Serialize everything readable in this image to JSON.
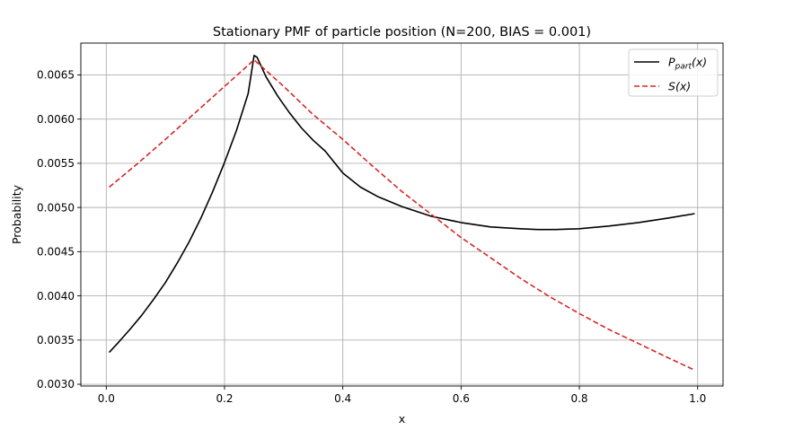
{
  "chart_data": {
    "type": "line",
    "title": "Stationary PMF of particle position (N=200, BIAS = 0.001)",
    "xlabel": "x",
    "ylabel": "Probability",
    "xlim": [
      -0.043,
      1.043
    ],
    "ylim": [
      0.00298,
      0.00686
    ],
    "xticks": [
      0.0,
      0.2,
      0.4,
      0.6,
      0.8,
      1.0
    ],
    "xtick_labels": [
      "0.0",
      "0.2",
      "0.4",
      "0.6",
      "0.8",
      "1.0"
    ],
    "yticks": [
      0.003,
      0.0035,
      0.004,
      0.0045,
      0.005,
      0.0055,
      0.006,
      0.0065
    ],
    "ytick_labels": [
      "0.0030",
      "0.0035",
      "0.0040",
      "0.0045",
      "0.0050",
      "0.0055",
      "0.0060",
      "0.0065"
    ],
    "grid": true,
    "legend_position": "top-right",
    "series": [
      {
        "name": "P_part(x)",
        "legend_main": "P",
        "legend_sub": "part",
        "legend_tail": "(x)",
        "color": "#000000",
        "style": "solid",
        "x": [
          0.005,
          0.02,
          0.04,
          0.06,
          0.08,
          0.1,
          0.12,
          0.14,
          0.16,
          0.18,
          0.2,
          0.22,
          0.24,
          0.25,
          0.255,
          0.27,
          0.29,
          0.31,
          0.33,
          0.35,
          0.37,
          0.4,
          0.43,
          0.46,
          0.5,
          0.55,
          0.6,
          0.65,
          0.7,
          0.73,
          0.76,
          0.8,
          0.85,
          0.9,
          0.95,
          0.995
        ],
        "y": [
          0.00336,
          0.00347,
          0.00362,
          0.00378,
          0.00396,
          0.00415,
          0.00437,
          0.00461,
          0.00488,
          0.00518,
          0.00551,
          0.00587,
          0.00629,
          0.00672,
          0.0067,
          0.00648,
          0.00626,
          0.00607,
          0.0059,
          0.00576,
          0.00564,
          0.00539,
          0.00523,
          0.00512,
          0.00501,
          0.0049,
          0.00483,
          0.00478,
          0.00476,
          0.00475,
          0.00475,
          0.00476,
          0.00479,
          0.00483,
          0.00488,
          0.00493
        ]
      },
      {
        "name": "S(x)",
        "legend_main": "S",
        "legend_sub": "",
        "legend_tail": "(x)",
        "color": "#d62728",
        "style": "dashed",
        "x": [
          0.005,
          0.05,
          0.1,
          0.15,
          0.2,
          0.25,
          0.3,
          0.35,
          0.4,
          0.45,
          0.5,
          0.55,
          0.6,
          0.65,
          0.7,
          0.75,
          0.8,
          0.85,
          0.9,
          0.95,
          0.995
        ],
        "y": [
          0.00523,
          0.00548,
          0.00577,
          0.00607,
          0.00637,
          0.00667,
          0.00637,
          0.00605,
          0.00577,
          0.00547,
          0.00518,
          0.00492,
          0.00466,
          0.00443,
          0.0042,
          0.00399,
          0.0038,
          0.00362,
          0.00346,
          0.0033,
          0.00316
        ]
      }
    ]
  }
}
